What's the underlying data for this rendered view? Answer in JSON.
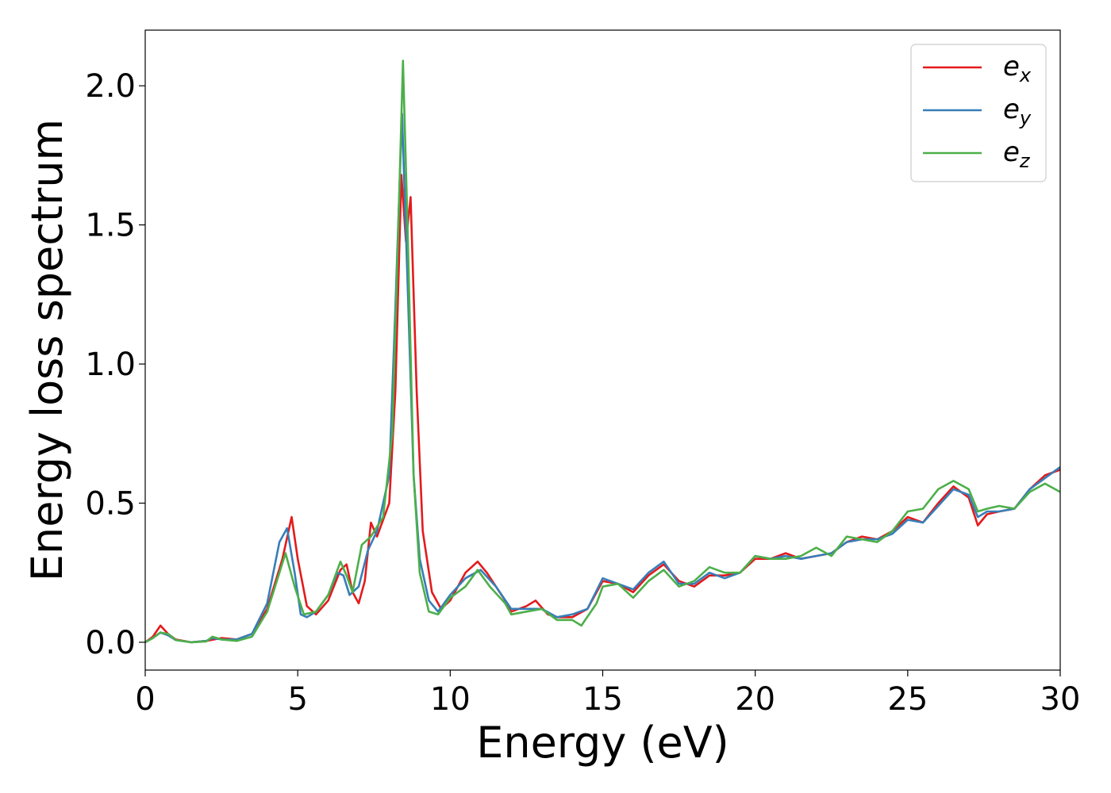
{
  "chart_data": {
    "type": "line",
    "xlabel": "Energy (eV)",
    "ylabel": "Energy loss spectrum",
    "xlim": [
      0,
      30
    ],
    "ylim": [
      -0.1,
      2.2
    ],
    "xticks": [
      0,
      5,
      10,
      15,
      20,
      25,
      30
    ],
    "yticks": [
      0.0,
      0.5,
      1.0,
      1.5,
      2.0
    ],
    "xtick_labels": [
      "0",
      "5",
      "10",
      "15",
      "20",
      "25",
      "30"
    ],
    "ytick_labels": [
      "0.0",
      "0.5",
      "1.0",
      "1.5",
      "2.0"
    ],
    "grid": false,
    "legend_position": "top-right",
    "series": [
      {
        "name": "e",
        "subscript": "x",
        "color": "#e41a1c",
        "points": [
          [
            0,
            0
          ],
          [
            0.25,
            0.02
          ],
          [
            0.5,
            0.06
          ],
          [
            0.75,
            0.03
          ],
          [
            1,
            0.01
          ],
          [
            1.5,
            0.0
          ],
          [
            2,
            0.005
          ],
          [
            2.5,
            0.015
          ],
          [
            3,
            0.01
          ],
          [
            3.5,
            0.03
          ],
          [
            4,
            0.12
          ],
          [
            4.5,
            0.3
          ],
          [
            4.8,
            0.45
          ],
          [
            5,
            0.3
          ],
          [
            5.3,
            0.13
          ],
          [
            5.6,
            0.1
          ],
          [
            6,
            0.15
          ],
          [
            6.4,
            0.26
          ],
          [
            6.6,
            0.28
          ],
          [
            6.8,
            0.18
          ],
          [
            7,
            0.14
          ],
          [
            7.2,
            0.22
          ],
          [
            7.4,
            0.43
          ],
          [
            7.6,
            0.38
          ],
          [
            8,
            0.5
          ],
          [
            8.2,
            0.9
          ],
          [
            8.4,
            1.68
          ],
          [
            8.55,
            1.44
          ],
          [
            8.7,
            1.6
          ],
          [
            8.9,
            0.9
          ],
          [
            9.1,
            0.4
          ],
          [
            9.4,
            0.18
          ],
          [
            9.7,
            0.12
          ],
          [
            10,
            0.15
          ],
          [
            10.5,
            0.25
          ],
          [
            10.9,
            0.29
          ],
          [
            11.2,
            0.25
          ],
          [
            11.5,
            0.2
          ],
          [
            11.8,
            0.15
          ],
          [
            12,
            0.11
          ],
          [
            12.5,
            0.13
          ],
          [
            12.8,
            0.15
          ],
          [
            13.2,
            0.1
          ],
          [
            13.5,
            0.09
          ],
          [
            14,
            0.09
          ],
          [
            14.5,
            0.12
          ],
          [
            15,
            0.22
          ],
          [
            15.5,
            0.21
          ],
          [
            16,
            0.18
          ],
          [
            16.5,
            0.24
          ],
          [
            17,
            0.28
          ],
          [
            17.5,
            0.22
          ],
          [
            18,
            0.2
          ],
          [
            18.5,
            0.24
          ],
          [
            19,
            0.24
          ],
          [
            19.5,
            0.25
          ],
          [
            20,
            0.3
          ],
          [
            20.5,
            0.3
          ],
          [
            21,
            0.32
          ],
          [
            21.5,
            0.3
          ],
          [
            22,
            0.31
          ],
          [
            22.5,
            0.32
          ],
          [
            23,
            0.36
          ],
          [
            23.5,
            0.38
          ],
          [
            24,
            0.37
          ],
          [
            24.5,
            0.4
          ],
          [
            25,
            0.45
          ],
          [
            25.5,
            0.43
          ],
          [
            26,
            0.5
          ],
          [
            26.5,
            0.56
          ],
          [
            27,
            0.52
          ],
          [
            27.3,
            0.42
          ],
          [
            27.6,
            0.46
          ],
          [
            28,
            0.47
          ],
          [
            28.5,
            0.48
          ],
          [
            29,
            0.55
          ],
          [
            29.5,
            0.6
          ],
          [
            30,
            0.62
          ]
        ]
      },
      {
        "name": "e",
        "subscript": "y",
        "color": "#377eb8",
        "points": [
          [
            0,
            0
          ],
          [
            0.25,
            0.015
          ],
          [
            0.5,
            0.035
          ],
          [
            0.75,
            0.025
          ],
          [
            1,
            0.008
          ],
          [
            1.5,
            0.0
          ],
          [
            2,
            0.005
          ],
          [
            2.2,
            0.015
          ],
          [
            2.5,
            0.01
          ],
          [
            3,
            0.01
          ],
          [
            3.5,
            0.03
          ],
          [
            4,
            0.14
          ],
          [
            4.4,
            0.36
          ],
          [
            4.65,
            0.41
          ],
          [
            4.9,
            0.25
          ],
          [
            5.1,
            0.1
          ],
          [
            5.3,
            0.09
          ],
          [
            5.6,
            0.11
          ],
          [
            6,
            0.17
          ],
          [
            6.3,
            0.25
          ],
          [
            6.5,
            0.24
          ],
          [
            6.7,
            0.17
          ],
          [
            7,
            0.2
          ],
          [
            7.3,
            0.33
          ],
          [
            7.6,
            0.4
          ],
          [
            8,
            0.6
          ],
          [
            8.2,
            1.2
          ],
          [
            8.42,
            1.9
          ],
          [
            8.6,
            1.3
          ],
          [
            8.8,
            0.6
          ],
          [
            9,
            0.3
          ],
          [
            9.3,
            0.15
          ],
          [
            9.6,
            0.11
          ],
          [
            10,
            0.17
          ],
          [
            10.5,
            0.23
          ],
          [
            11,
            0.26
          ],
          [
            11.5,
            0.2
          ],
          [
            12,
            0.12
          ],
          [
            12.5,
            0.12
          ],
          [
            13,
            0.12
          ],
          [
            13.5,
            0.09
          ],
          [
            14,
            0.1
          ],
          [
            14.5,
            0.12
          ],
          [
            15,
            0.23
          ],
          [
            15.5,
            0.21
          ],
          [
            16,
            0.19
          ],
          [
            16.5,
            0.25
          ],
          [
            17,
            0.29
          ],
          [
            17.5,
            0.21
          ],
          [
            18,
            0.21
          ],
          [
            18.5,
            0.25
          ],
          [
            19,
            0.23
          ],
          [
            19.5,
            0.25
          ],
          [
            20,
            0.31
          ],
          [
            20.5,
            0.3
          ],
          [
            21,
            0.31
          ],
          [
            21.5,
            0.3
          ],
          [
            22,
            0.31
          ],
          [
            22.5,
            0.32
          ],
          [
            23,
            0.36
          ],
          [
            23.5,
            0.37
          ],
          [
            24,
            0.37
          ],
          [
            24.5,
            0.39
          ],
          [
            25,
            0.44
          ],
          [
            25.5,
            0.43
          ],
          [
            26,
            0.49
          ],
          [
            26.5,
            0.55
          ],
          [
            27,
            0.53
          ],
          [
            27.3,
            0.45
          ],
          [
            27.6,
            0.47
          ],
          [
            28,
            0.47
          ],
          [
            28.5,
            0.48
          ],
          [
            29,
            0.55
          ],
          [
            29.5,
            0.59
          ],
          [
            30,
            0.63
          ]
        ]
      },
      {
        "name": "e",
        "subscript": "z",
        "color": "#4daf4a",
        "points": [
          [
            0,
            0
          ],
          [
            0.25,
            0.015
          ],
          [
            0.5,
            0.035
          ],
          [
            0.75,
            0.03
          ],
          [
            1,
            0.008
          ],
          [
            1.5,
            0.0
          ],
          [
            2,
            0.003
          ],
          [
            2.2,
            0.02
          ],
          [
            2.5,
            0.01
          ],
          [
            3,
            0.005
          ],
          [
            3.5,
            0.02
          ],
          [
            4,
            0.11
          ],
          [
            4.4,
            0.25
          ],
          [
            4.6,
            0.32
          ],
          [
            4.9,
            0.2
          ],
          [
            5.2,
            0.1
          ],
          [
            5.6,
            0.11
          ],
          [
            6,
            0.17
          ],
          [
            6.4,
            0.29
          ],
          [
            6.6,
            0.24
          ],
          [
            6.8,
            0.18
          ],
          [
            7.1,
            0.35
          ],
          [
            7.4,
            0.38
          ],
          [
            7.8,
            0.45
          ],
          [
            8.1,
            0.75
          ],
          [
            8.3,
            1.5
          ],
          [
            8.45,
            2.09
          ],
          [
            8.6,
            1.5
          ],
          [
            8.8,
            0.6
          ],
          [
            9.0,
            0.25
          ],
          [
            9.3,
            0.11
          ],
          [
            9.6,
            0.1
          ],
          [
            10,
            0.16
          ],
          [
            10.5,
            0.2
          ],
          [
            10.9,
            0.26
          ],
          [
            11.3,
            0.2
          ],
          [
            11.8,
            0.14
          ],
          [
            12,
            0.1
          ],
          [
            12.5,
            0.11
          ],
          [
            13,
            0.12
          ],
          [
            13.5,
            0.08
          ],
          [
            14,
            0.08
          ],
          [
            14.3,
            0.06
          ],
          [
            14.8,
            0.14
          ],
          [
            15,
            0.2
          ],
          [
            15.5,
            0.21
          ],
          [
            16,
            0.16
          ],
          [
            16.5,
            0.22
          ],
          [
            17,
            0.26
          ],
          [
            17.5,
            0.2
          ],
          [
            18,
            0.22
          ],
          [
            18.5,
            0.27
          ],
          [
            19,
            0.25
          ],
          [
            19.5,
            0.25
          ],
          [
            20,
            0.31
          ],
          [
            20.5,
            0.3
          ],
          [
            21,
            0.3
          ],
          [
            21.5,
            0.31
          ],
          [
            22,
            0.34
          ],
          [
            22.5,
            0.31
          ],
          [
            23,
            0.38
          ],
          [
            23.5,
            0.37
          ],
          [
            24,
            0.36
          ],
          [
            24.5,
            0.4
          ],
          [
            25,
            0.47
          ],
          [
            25.5,
            0.48
          ],
          [
            26,
            0.55
          ],
          [
            26.5,
            0.58
          ],
          [
            27,
            0.55
          ],
          [
            27.3,
            0.47
          ],
          [
            27.6,
            0.48
          ],
          [
            28,
            0.49
          ],
          [
            28.5,
            0.48
          ],
          [
            29,
            0.54
          ],
          [
            29.5,
            0.57
          ],
          [
            30,
            0.54
          ]
        ]
      }
    ]
  }
}
